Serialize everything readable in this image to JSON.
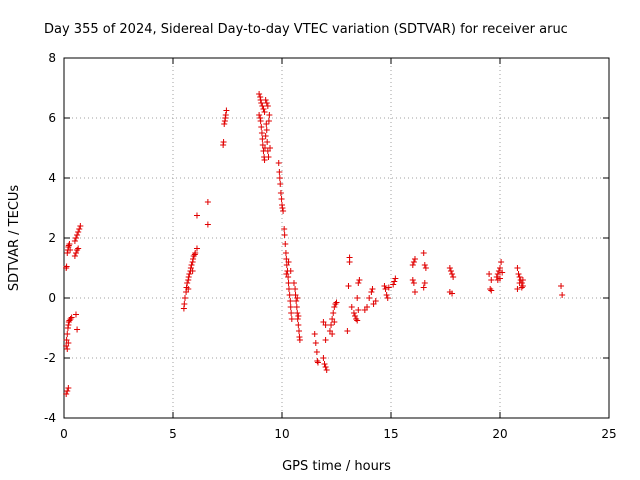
{
  "chart_data": {
    "type": "scatter",
    "title": "Day 355 of 2024, Sidereal Day-to-day VTEC variation (SDTVAR) for receiver aruc",
    "xlabel": "GPS time / hours",
    "ylabel": "SDTVAR / TECUs",
    "xlim": [
      0,
      25
    ],
    "ylim": [
      -4,
      8
    ],
    "xticks": [
      0,
      5,
      10,
      15,
      20,
      25
    ],
    "yticks": [
      -4,
      -2,
      0,
      2,
      4,
      6,
      8
    ],
    "grid": true,
    "marker": "+",
    "marker_color": "#e00000",
    "series": [
      {
        "name": "SDTVAR",
        "points": [
          [
            0.1,
            1.0
          ],
          [
            0.12,
            1.05
          ],
          [
            0.15,
            1.5
          ],
          [
            0.18,
            1.6
          ],
          [
            0.2,
            1.7
          ],
          [
            0.22,
            1.75
          ],
          [
            0.25,
            1.8
          ],
          [
            0.28,
            1.6
          ],
          [
            0.1,
            -3.2
          ],
          [
            0.15,
            -3.1
          ],
          [
            0.2,
            -3.0
          ],
          [
            0.1,
            -1.6
          ],
          [
            0.12,
            -1.4
          ],
          [
            0.15,
            -1.2
          ],
          [
            0.18,
            -1.0
          ],
          [
            0.2,
            -0.9
          ],
          [
            0.22,
            -0.8
          ],
          [
            0.25,
            -0.75
          ],
          [
            0.3,
            -0.7
          ],
          [
            0.35,
            -0.65
          ],
          [
            0.15,
            -1.7
          ],
          [
            0.2,
            -1.5
          ],
          [
            0.5,
            1.4
          ],
          [
            0.55,
            1.5
          ],
          [
            0.6,
            1.6
          ],
          [
            0.65,
            1.65
          ],
          [
            0.5,
            1.9
          ],
          [
            0.55,
            2.0
          ],
          [
            0.6,
            2.1
          ],
          [
            0.65,
            2.2
          ],
          [
            0.7,
            2.3
          ],
          [
            0.75,
            2.4
          ],
          [
            0.55,
            -0.55
          ],
          [
            0.6,
            -1.05
          ],
          [
            5.5,
            -0.35
          ],
          [
            5.52,
            -0.2
          ],
          [
            5.55,
            0.0
          ],
          [
            5.6,
            0.2
          ],
          [
            5.62,
            0.35
          ],
          [
            5.65,
            0.5
          ],
          [
            5.7,
            0.6
          ],
          [
            5.72,
            0.7
          ],
          [
            5.75,
            0.8
          ],
          [
            5.8,
            0.9
          ],
          [
            5.82,
            1.0
          ],
          [
            5.85,
            1.1
          ],
          [
            5.9,
            1.2
          ],
          [
            5.92,
            1.3
          ],
          [
            5.95,
            1.4
          ],
          [
            6.0,
            1.45
          ],
          [
            6.02,
            1.5
          ],
          [
            5.9,
            0.9
          ],
          [
            5.7,
            0.3
          ],
          [
            6.1,
            1.65
          ],
          [
            6.1,
            2.75
          ],
          [
            6.6,
            2.45
          ],
          [
            6.6,
            3.2
          ],
          [
            7.3,
            5.1
          ],
          [
            7.32,
            5.2
          ],
          [
            7.35,
            5.8
          ],
          [
            7.38,
            5.9
          ],
          [
            7.4,
            6.0
          ],
          [
            7.42,
            6.1
          ],
          [
            7.45,
            6.25
          ],
          [
            8.95,
            6.8
          ],
          [
            9.0,
            6.7
          ],
          [
            9.02,
            6.6
          ],
          [
            9.05,
            6.5
          ],
          [
            9.1,
            6.4
          ],
          [
            9.15,
            6.3
          ],
          [
            9.2,
            6.2
          ],
          [
            9.25,
            6.6
          ],
          [
            9.3,
            6.5
          ],
          [
            9.35,
            6.4
          ],
          [
            8.95,
            6.1
          ],
          [
            9.0,
            6.0
          ],
          [
            9.02,
            5.9
          ],
          [
            9.05,
            5.7
          ],
          [
            9.08,
            5.5
          ],
          [
            9.1,
            5.3
          ],
          [
            9.12,
            5.1
          ],
          [
            9.15,
            4.9
          ],
          [
            9.18,
            4.7
          ],
          [
            9.2,
            4.6
          ],
          [
            9.22,
            5.0
          ],
          [
            9.25,
            5.4
          ],
          [
            9.28,
            5.8
          ],
          [
            9.3,
            5.6
          ],
          [
            9.32,
            5.2
          ],
          [
            9.35,
            4.9
          ],
          [
            9.38,
            4.7
          ],
          [
            9.4,
            5.9
          ],
          [
            9.42,
            6.1
          ],
          [
            9.45,
            5.0
          ],
          [
            9.85,
            4.5
          ],
          [
            9.88,
            4.2
          ],
          [
            9.9,
            4.0
          ],
          [
            9.92,
            3.8
          ],
          [
            9.95,
            3.5
          ],
          [
            9.98,
            3.3
          ],
          [
            10.0,
            3.1
          ],
          [
            10.02,
            3.0
          ],
          [
            10.05,
            2.9
          ],
          [
            10.1,
            2.3
          ],
          [
            10.12,
            2.1
          ],
          [
            10.15,
            1.8
          ],
          [
            10.18,
            1.5
          ],
          [
            10.2,
            1.3
          ],
          [
            10.22,
            1.1
          ],
          [
            10.25,
            0.9
          ],
          [
            10.28,
            0.7
          ],
          [
            10.3,
            0.5
          ],
          [
            10.32,
            0.3
          ],
          [
            10.35,
            0.1
          ],
          [
            10.38,
            -0.1
          ],
          [
            10.4,
            -0.3
          ],
          [
            10.42,
            -0.5
          ],
          [
            10.45,
            -0.7
          ],
          [
            10.2,
            0.8
          ],
          [
            10.3,
            1.2
          ],
          [
            10.4,
            0.9
          ],
          [
            10.55,
            0.5
          ],
          [
            10.6,
            0.3
          ],
          [
            10.62,
            0.1
          ],
          [
            10.65,
            -0.1
          ],
          [
            10.68,
            -0.3
          ],
          [
            10.7,
            -0.5
          ],
          [
            10.72,
            -0.7
          ],
          [
            10.75,
            -0.9
          ],
          [
            10.78,
            -1.1
          ],
          [
            10.8,
            -1.3
          ],
          [
            10.82,
            -1.4
          ],
          [
            10.7,
            0.0
          ],
          [
            10.75,
            -0.6
          ],
          [
            11.5,
            -1.2
          ],
          [
            11.55,
            -1.5
          ],
          [
            11.6,
            -1.8
          ],
          [
            11.62,
            -2.1
          ],
          [
            11.65,
            -2.15
          ],
          [
            11.9,
            -2.0
          ],
          [
            11.95,
            -2.2
          ],
          [
            12.0,
            -2.3
          ],
          [
            12.05,
            -2.4
          ],
          [
            11.9,
            -0.8
          ],
          [
            12.0,
            -0.9
          ],
          [
            12.0,
            -1.4
          ],
          [
            12.2,
            -1.1
          ],
          [
            12.25,
            -0.9
          ],
          [
            12.3,
            -0.7
          ],
          [
            12.35,
            -0.5
          ],
          [
            12.4,
            -0.3
          ],
          [
            12.45,
            -0.2
          ],
          [
            12.5,
            -0.15
          ],
          [
            12.3,
            -1.2
          ],
          [
            12.4,
            -0.8
          ],
          [
            13.0,
            -1.1
          ],
          [
            13.05,
            0.4
          ],
          [
            13.1,
            1.2
          ],
          [
            13.1,
            1.35
          ],
          [
            13.2,
            -0.3
          ],
          [
            13.3,
            -0.5
          ],
          [
            13.35,
            -0.6
          ],
          [
            13.4,
            -0.7
          ],
          [
            13.45,
            -0.75
          ],
          [
            13.5,
            0.5
          ],
          [
            13.55,
            0.6
          ],
          [
            13.45,
            0.0
          ],
          [
            13.5,
            -0.4
          ],
          [
            13.8,
            -0.4
          ],
          [
            13.9,
            -0.3
          ],
          [
            14.0,
            0.0
          ],
          [
            14.1,
            0.2
          ],
          [
            14.15,
            0.3
          ],
          [
            14.2,
            -0.2
          ],
          [
            14.3,
            -0.1
          ],
          [
            14.7,
            0.4
          ],
          [
            14.75,
            0.3
          ],
          [
            14.8,
            0.1
          ],
          [
            14.85,
            0.0
          ],
          [
            14.9,
            0.35
          ],
          [
            15.1,
            0.45
          ],
          [
            15.15,
            0.55
          ],
          [
            15.2,
            0.65
          ],
          [
            16.0,
            1.1
          ],
          [
            16.05,
            1.2
          ],
          [
            16.1,
            1.3
          ],
          [
            16.0,
            0.6
          ],
          [
            16.05,
            0.5
          ],
          [
            16.1,
            0.2
          ],
          [
            16.5,
            1.5
          ],
          [
            16.55,
            1.1
          ],
          [
            16.6,
            1.0
          ],
          [
            16.5,
            0.35
          ],
          [
            16.55,
            0.5
          ],
          [
            17.7,
            1.0
          ],
          [
            17.75,
            0.9
          ],
          [
            17.8,
            0.8
          ],
          [
            17.85,
            0.7
          ],
          [
            17.7,
            0.2
          ],
          [
            17.8,
            0.15
          ],
          [
            19.5,
            0.8
          ],
          [
            19.55,
            0.3
          ],
          [
            19.6,
            0.25
          ],
          [
            19.6,
            0.6
          ],
          [
            19.85,
            0.7
          ],
          [
            19.9,
            0.8
          ],
          [
            19.95,
            0.9
          ],
          [
            20.0,
            1.0
          ],
          [
            20.05,
            1.2
          ],
          [
            20.1,
            0.85
          ],
          [
            20.0,
            0.65
          ],
          [
            19.9,
            0.6
          ],
          [
            20.8,
            1.0
          ],
          [
            20.85,
            0.8
          ],
          [
            20.9,
            0.7
          ],
          [
            20.95,
            0.6
          ],
          [
            21.0,
            0.5
          ],
          [
            21.05,
            0.4
          ],
          [
            20.8,
            0.3
          ],
          [
            20.9,
            0.5
          ],
          [
            21.0,
            0.35
          ],
          [
            21.05,
            0.6
          ],
          [
            22.8,
            0.4
          ],
          [
            22.85,
            0.1
          ]
        ]
      }
    ]
  }
}
